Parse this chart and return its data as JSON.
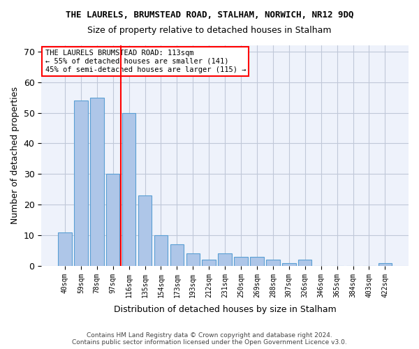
{
  "title": "THE LAURELS, BRUMSTEAD ROAD, STALHAM, NORWICH, NR12 9DQ",
  "subtitle": "Size of property relative to detached houses in Stalham",
  "xlabel": "Distribution of detached houses by size in Stalham",
  "ylabel": "Number of detached properties",
  "categories": [
    "40sqm",
    "59sqm",
    "78sqm",
    "97sqm",
    "116sqm",
    "135sqm",
    "154sqm",
    "173sqm",
    "193sqm",
    "212sqm",
    "231sqm",
    "250sqm",
    "269sqm",
    "288sqm",
    "307sqm",
    "326sqm",
    "346sqm",
    "365sqm",
    "384sqm",
    "403sqm",
    "422sqm"
  ],
  "values": [
    11,
    54,
    55,
    30,
    50,
    23,
    10,
    7,
    4,
    2,
    4,
    3,
    3,
    2,
    1,
    2,
    0,
    0,
    0,
    0,
    1
  ],
  "bar_color": "#aec6e8",
  "bar_edge_color": "#5a9fd4",
  "red_line_index": 4,
  "ylim": [
    0,
    72
  ],
  "yticks": [
    0,
    10,
    20,
    30,
    40,
    50,
    60,
    70
  ],
  "annotation_title": "THE LAURELS BRUMSTEAD ROAD: 113sqm",
  "annotation_line1": "← 55% of detached houses are smaller (141)",
  "annotation_line2": "45% of semi-detached houses are larger (115) →",
  "footer1": "Contains HM Land Registry data © Crown copyright and database right 2024.",
  "footer2": "Contains public sector information licensed under the Open Government Licence v3.0.",
  "bg_color": "#eef2fb",
  "grid_color": "#c0c8d8"
}
